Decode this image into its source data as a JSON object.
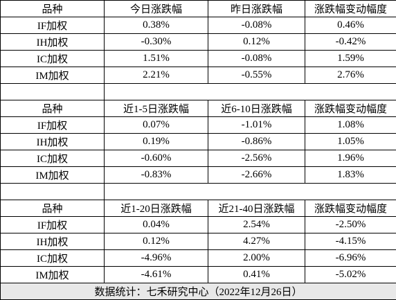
{
  "blocks": [
    {
      "header": [
        "品种",
        "今日涨跌幅",
        "昨日涨跌幅",
        "涨跌幅变动幅度"
      ],
      "rows": [
        [
          "IF加权",
          "0.38%",
          "-0.08%",
          "0.46%"
        ],
        [
          "IH加权",
          "-0.30%",
          "0.12%",
          "-0.42%"
        ],
        [
          "IC加权",
          "1.51%",
          "-0.08%",
          "1.59%"
        ],
        [
          "IM加权",
          "2.21%",
          "-0.55%",
          "2.76%"
        ]
      ]
    },
    {
      "header": [
        "品种",
        "近1-5日涨跌幅",
        "近6-10日涨跌幅",
        "涨跌幅变动幅度"
      ],
      "rows": [
        [
          "IF加权",
          "0.07%",
          "-1.01%",
          "1.08%"
        ],
        [
          "IH加权",
          "0.19%",
          "-0.86%",
          "1.05%"
        ],
        [
          "IC加权",
          "-0.60%",
          "-2.56%",
          "1.96%"
        ],
        [
          "IM加权",
          "-0.83%",
          "-2.66%",
          "1.83%"
        ]
      ]
    },
    {
      "header": [
        "品种",
        "近1-20日涨跌幅",
        "近21-40日涨跌幅",
        "涨跌幅变动幅度"
      ],
      "rows": [
        [
          "IF加权",
          "0.04%",
          "2.54%",
          "-2.50%"
        ],
        [
          "IH加权",
          "0.12%",
          "4.27%",
          "-4.15%"
        ],
        [
          "IC加权",
          "-4.96%",
          "2.00%",
          "-6.96%"
        ],
        [
          "IM加权",
          "-4.61%",
          "0.41%",
          "-5.02%"
        ]
      ]
    }
  ],
  "footer": "数据统计：七禾研究中心（2022年12月26日）"
}
